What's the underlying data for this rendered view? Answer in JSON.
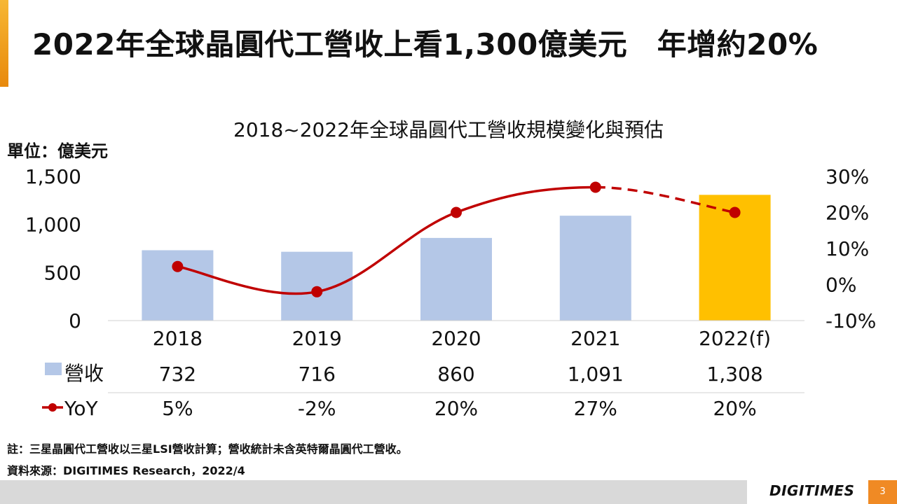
{
  "slide": {
    "title": "2022年全球晶圓代工營收上看1,300億美元　年增約20%",
    "page_number": "3"
  },
  "chart_data": {
    "type": "bar",
    "title": "2018~2022年全球晶圓代工營收規模變化與預估",
    "unit_label": "單位：億美元",
    "categories": [
      "2018",
      "2019",
      "2020",
      "2021",
      "2022(f)"
    ],
    "ylim": [
      0,
      1500
    ],
    "y_ticks": [
      "1,500",
      "1,000",
      "500",
      "0"
    ],
    "y2lim": [
      -10,
      30
    ],
    "y2_ticks": [
      "30%",
      "20%",
      "10%",
      "0%",
      "-10%"
    ],
    "series": [
      {
        "name": "營收",
        "type": "bar",
        "values": [
          732,
          716,
          860,
          1091,
          1308
        ],
        "labels": [
          "732",
          "716",
          "860",
          "1,091",
          "1,308"
        ],
        "color": "#b4c7e7",
        "highlight_color": "#ffc000",
        "highlight_index": 4
      },
      {
        "name": "YoY",
        "type": "line",
        "axis": "right",
        "values": [
          5,
          -2,
          20,
          27,
          20
        ],
        "labels": [
          "5%",
          "-2%",
          "20%",
          "27%",
          "20%"
        ],
        "color": "#c00000",
        "dashed_from_index": 3
      }
    ],
    "grid": false,
    "legend": "data-table"
  },
  "notes": {
    "note": "註：三星晶圓代工營收以三星LSI營收計算；營收統計未含英特爾晶圓代工營收。",
    "source": "資料來源：DIGITIMES Research，2022/4"
  },
  "footer": {
    "brand": "DIGITIMES"
  }
}
